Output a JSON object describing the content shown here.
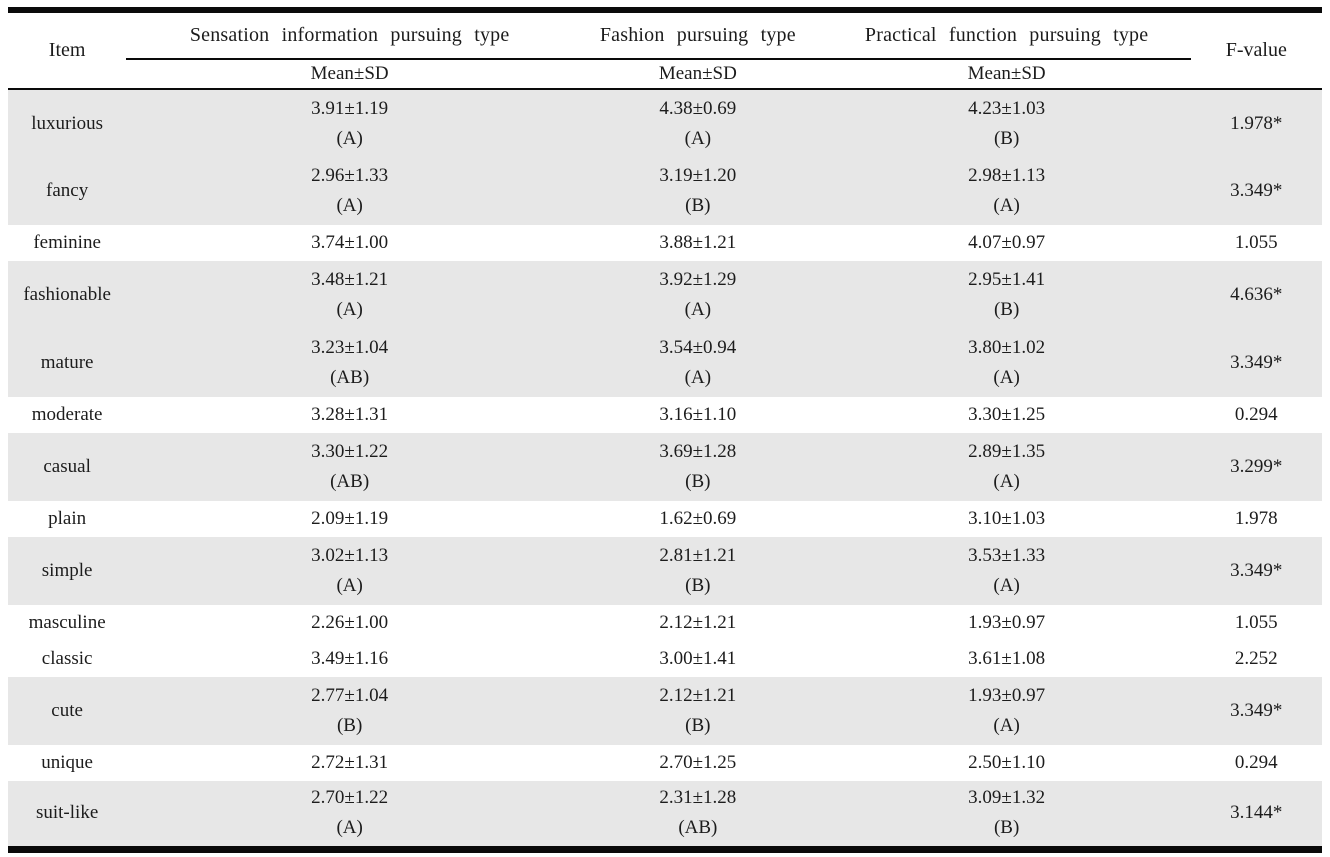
{
  "colors": {
    "rule": "#0a0a0a",
    "row_shade": "#e7e7e7",
    "text": "#1c1c1c",
    "background": "#ffffff"
  },
  "table": {
    "headers": {
      "item": "Item",
      "f_value": "F-value",
      "groups": [
        "Sensation information pursuing type",
        "Fashion pursuing type",
        "Practical function pursuing type"
      ],
      "sub": [
        "Mean±SD",
        "Mean±SD",
        "Mean±SD"
      ]
    },
    "rows": [
      {
        "item": "luxurious",
        "cells": [
          {
            "value": "3.91±1.19",
            "group": "(A)"
          },
          {
            "value": "4.38±0.69",
            "group": "(A)"
          },
          {
            "value": "4.23±1.03",
            "group": "(B)"
          }
        ],
        "f_value": "1.978*",
        "shaded": true
      },
      {
        "item": "fancy",
        "cells": [
          {
            "value": "2.96±1.33",
            "group": "(A)"
          },
          {
            "value": "3.19±1.20",
            "group": "(B)"
          },
          {
            "value": "2.98±1.13",
            "group": "(A)"
          }
        ],
        "f_value": "3.349*",
        "shaded": true
      },
      {
        "item": "feminine",
        "cells": [
          {
            "value": "3.74±1.00"
          },
          {
            "value": "3.88±1.21"
          },
          {
            "value": "4.07±0.97"
          }
        ],
        "f_value": "1.055",
        "shaded": false
      },
      {
        "item": "fashionable",
        "cells": [
          {
            "value": "3.48±1.21",
            "group": "(A)"
          },
          {
            "value": "3.92±1.29",
            "group": "(A)"
          },
          {
            "value": "2.95±1.41",
            "group": "(B)"
          }
        ],
        "f_value": "4.636*",
        "shaded": true
      },
      {
        "item": "mature",
        "cells": [
          {
            "value": "3.23±1.04",
            "group": "(AB)"
          },
          {
            "value": "3.54±0.94",
            "group": "(A)"
          },
          {
            "value": "3.80±1.02",
            "group": "(A)"
          }
        ],
        "f_value": "3.349*",
        "shaded": true
      },
      {
        "item": "moderate",
        "cells": [
          {
            "value": "3.28±1.31"
          },
          {
            "value": "3.16±1.10"
          },
          {
            "value": "3.30±1.25"
          }
        ],
        "f_value": "0.294",
        "shaded": false
      },
      {
        "item": "casual",
        "cells": [
          {
            "value": "3.30±1.22",
            "group": "(AB)"
          },
          {
            "value": "3.69±1.28",
            "group": "(B)"
          },
          {
            "value": "2.89±1.35",
            "group": "(A)"
          }
        ],
        "f_value": "3.299*",
        "shaded": true
      },
      {
        "item": "plain",
        "cells": [
          {
            "value": "2.09±1.19"
          },
          {
            "value": "1.62±0.69"
          },
          {
            "value": "3.10±1.03"
          }
        ],
        "f_value": "1.978",
        "shaded": false
      },
      {
        "item": "simple",
        "cells": [
          {
            "value": "3.02±1.13",
            "group": "(A)"
          },
          {
            "value": "2.81±1.21",
            "group": "(B)"
          },
          {
            "value": "3.53±1.33",
            "group": "(A)"
          }
        ],
        "f_value": "3.349*",
        "shaded": true
      },
      {
        "item": "masculine",
        "cells": [
          {
            "value": "2.26±1.00"
          },
          {
            "value": "2.12±1.21"
          },
          {
            "value": "1.93±0.97"
          }
        ],
        "f_value": "1.055",
        "shaded": false
      },
      {
        "item": "classic",
        "cells": [
          {
            "value": "3.49±1.16"
          },
          {
            "value": "3.00±1.41"
          },
          {
            "value": "3.61±1.08"
          }
        ],
        "f_value": "2.252",
        "shaded": false
      },
      {
        "item": "cute",
        "cells": [
          {
            "value": "2.77±1.04",
            "group": "(B)"
          },
          {
            "value": "2.12±1.21",
            "group": "(B)"
          },
          {
            "value": "1.93±0.97",
            "group": "(A)"
          }
        ],
        "f_value": "3.349*",
        "shaded": true
      },
      {
        "item": "unique",
        "cells": [
          {
            "value": "2.72±1.31"
          },
          {
            "value": "2.70±1.25"
          },
          {
            "value": "2.50±1.10"
          }
        ],
        "f_value": "0.294",
        "shaded": false
      },
      {
        "item": "suit-like",
        "cells": [
          {
            "value": "2.70±1.22",
            "group": "(A)"
          },
          {
            "value": "2.31±1.28",
            "group": "(AB)"
          },
          {
            "value": "3.09±1.32",
            "group": "(B)"
          }
        ],
        "f_value": "3.144*",
        "shaded": true
      }
    ]
  }
}
